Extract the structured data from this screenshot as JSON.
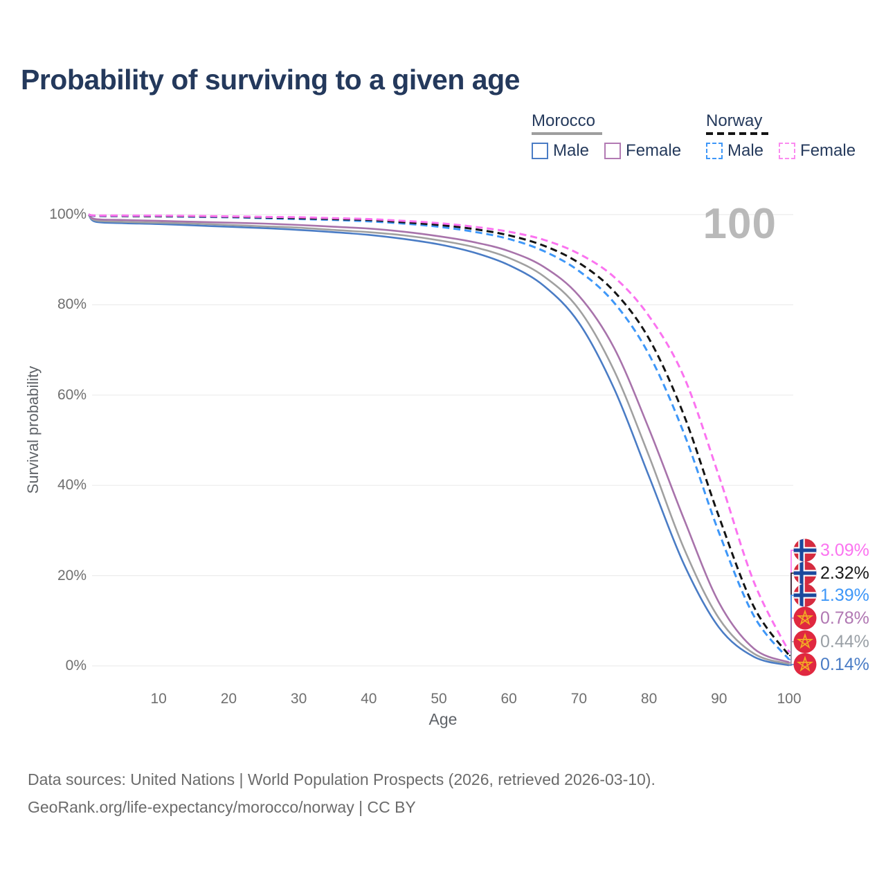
{
  "title": "Probability of surviving to a given age",
  "watermark": "100",
  "legend": {
    "groups": [
      {
        "label": "Morocco",
        "line_style": "solid",
        "line_color": "#9e9e9e",
        "items": [
          {
            "label": "Male",
            "color": "#4a7cc5",
            "dashed": false
          },
          {
            "label": "Female",
            "color": "#b27ab3",
            "dashed": false
          }
        ]
      },
      {
        "label": "Norway",
        "line_style": "dashed",
        "line_color": "#141414",
        "items": [
          {
            "label": "Male",
            "color": "#3e97f8",
            "dashed": true
          },
          {
            "label": "Female",
            "color": "#fb8bf0",
            "dashed": true
          }
        ]
      }
    ]
  },
  "axes": {
    "x_title": "Age",
    "y_title": "Survival probability",
    "x_tick_labels": [
      "10",
      "20",
      "30",
      "40",
      "50",
      "60",
      "70",
      "80",
      "90",
      "100"
    ],
    "x_tick_values": [
      10,
      20,
      30,
      40,
      50,
      60,
      70,
      80,
      90,
      100
    ],
    "y_tick_labels": [
      "100%",
      "80%",
      "60%",
      "40%",
      "20%",
      "0%"
    ],
    "y_tick_values": [
      100,
      80,
      60,
      40,
      20,
      0
    ]
  },
  "end_labels": [
    {
      "text": "3.09%",
      "value_pct": 3.09,
      "color": "#fb73f0",
      "flag": "norway",
      "series": "Norway Female"
    },
    {
      "text": "2.32%",
      "value_pct": 2.32,
      "color": "#1a1a1a",
      "flag": "norway",
      "series": "Norway"
    },
    {
      "text": "1.39%",
      "value_pct": 1.39,
      "color": "#3e97f8",
      "flag": "norway",
      "series": "Norway Male"
    },
    {
      "text": "0.78%",
      "value_pct": 0.78,
      "color": "#b077b2",
      "flag": "morocco",
      "series": "Morocco Female"
    },
    {
      "text": "0.44%",
      "value_pct": 0.44,
      "color": "#9aa0a6",
      "flag": "morocco",
      "series": "Morocco"
    },
    {
      "text": "0.14%",
      "value_pct": 0.14,
      "color": "#4a7cc5",
      "flag": "morocco",
      "series": "Morocco Male"
    }
  ],
  "footer": {
    "line1": "Data sources: United Nations | World Population Prospects (2026, retrieved 2026-03-10).",
    "line2": "GeoRank.org/life-expectancy/morocco/norway | CC BY"
  },
  "chart_data": {
    "type": "line",
    "title": "Probability of surviving to a given age",
    "xlabel": "Age",
    "ylabel": "Survival probability",
    "xlim": [
      0,
      100
    ],
    "ylim": [
      0,
      100
    ],
    "grid": "horizontal",
    "legend_position": "top-right",
    "hover_x_value": 100,
    "series": [
      {
        "name": "Morocco Male",
        "country": "Morocco",
        "sex": "male",
        "color": "#4a7cc5",
        "dashed": false,
        "end_value_pct": 0.14,
        "points_age_pct": [
          [
            0,
            100
          ],
          [
            1,
            98.4
          ],
          [
            5,
            98.1
          ],
          [
            10,
            97.9
          ],
          [
            15,
            97.6
          ],
          [
            20,
            97.3
          ],
          [
            25,
            97.0
          ],
          [
            30,
            96.6
          ],
          [
            35,
            96.1
          ],
          [
            40,
            95.5
          ],
          [
            45,
            94.6
          ],
          [
            50,
            93.4
          ],
          [
            55,
            91.6
          ],
          [
            60,
            88.8
          ],
          [
            65,
            84.2
          ],
          [
            70,
            76.0
          ],
          [
            75,
            61.5
          ],
          [
            80,
            42.0
          ],
          [
            85,
            22.5
          ],
          [
            90,
            8.5
          ],
          [
            95,
            2.0
          ],
          [
            100,
            0.14
          ]
        ]
      },
      {
        "name": "Morocco",
        "country": "Morocco",
        "sex": "total",
        "color": "#a0a0a0",
        "dashed": false,
        "end_value_pct": 0.44,
        "points_age_pct": [
          [
            0,
            100
          ],
          [
            1,
            98.7
          ],
          [
            5,
            98.4
          ],
          [
            10,
            98.2
          ],
          [
            15,
            98.0
          ],
          [
            20,
            97.7
          ],
          [
            25,
            97.4
          ],
          [
            30,
            97.1
          ],
          [
            35,
            96.6
          ],
          [
            40,
            96.1
          ],
          [
            45,
            95.4
          ],
          [
            50,
            94.3
          ],
          [
            55,
            92.8
          ],
          [
            60,
            90.4
          ],
          [
            65,
            86.3
          ],
          [
            70,
            79.0
          ],
          [
            75,
            65.5
          ],
          [
            80,
            46.5
          ],
          [
            85,
            26.0
          ],
          [
            90,
            10.5
          ],
          [
            95,
            2.7
          ],
          [
            100,
            0.44
          ]
        ]
      },
      {
        "name": "Morocco Female",
        "country": "Morocco",
        "sex": "female",
        "color": "#a873ab",
        "dashed": false,
        "end_value_pct": 0.78,
        "points_age_pct": [
          [
            0,
            100
          ],
          [
            1,
            99.0
          ],
          [
            5,
            98.8
          ],
          [
            10,
            98.6
          ],
          [
            15,
            98.4
          ],
          [
            20,
            98.2
          ],
          [
            25,
            98.0
          ],
          [
            30,
            97.7
          ],
          [
            35,
            97.3
          ],
          [
            40,
            96.9
          ],
          [
            45,
            96.2
          ],
          [
            50,
            95.2
          ],
          [
            55,
            93.9
          ],
          [
            60,
            91.9
          ],
          [
            65,
            88.4
          ],
          [
            70,
            82.0
          ],
          [
            75,
            70.5
          ],
          [
            80,
            52.5
          ],
          [
            85,
            32.5
          ],
          [
            90,
            14.0
          ],
          [
            95,
            3.8
          ],
          [
            100,
            0.78
          ]
        ]
      },
      {
        "name": "Norway Male",
        "country": "Norway",
        "sex": "male",
        "color": "#3e97f8",
        "dashed": true,
        "end_value_pct": 1.39,
        "points_age_pct": [
          [
            0,
            100
          ],
          [
            1,
            99.7
          ],
          [
            5,
            99.65
          ],
          [
            10,
            99.6
          ],
          [
            15,
            99.5
          ],
          [
            20,
            99.4
          ],
          [
            25,
            99.2
          ],
          [
            30,
            99.0
          ],
          [
            35,
            98.8
          ],
          [
            40,
            98.5
          ],
          [
            45,
            98.0
          ],
          [
            50,
            97.3
          ],
          [
            55,
            96.2
          ],
          [
            60,
            94.6
          ],
          [
            65,
            91.9
          ],
          [
            70,
            87.5
          ],
          [
            75,
            80.5
          ],
          [
            80,
            69.0
          ],
          [
            85,
            51.5
          ],
          [
            90,
            29.5
          ],
          [
            95,
            11.0
          ],
          [
            100,
            1.39
          ]
        ]
      },
      {
        "name": "Norway",
        "country": "Norway",
        "sex": "total",
        "color": "#141414",
        "dashed": true,
        "end_value_pct": 2.32,
        "points_age_pct": [
          [
            0,
            100
          ],
          [
            1,
            99.75
          ],
          [
            5,
            99.7
          ],
          [
            10,
            99.65
          ],
          [
            15,
            99.6
          ],
          [
            20,
            99.5
          ],
          [
            25,
            99.35
          ],
          [
            30,
            99.2
          ],
          [
            35,
            99.0
          ],
          [
            40,
            98.8
          ],
          [
            45,
            98.3
          ],
          [
            50,
            97.7
          ],
          [
            55,
            96.8
          ],
          [
            60,
            95.4
          ],
          [
            65,
            93.1
          ],
          [
            70,
            89.3
          ],
          [
            75,
            83.0
          ],
          [
            80,
            72.5
          ],
          [
            85,
            55.5
          ],
          [
            90,
            33.0
          ],
          [
            95,
            13.0
          ],
          [
            100,
            2.32
          ]
        ]
      },
      {
        "name": "Norway Female",
        "country": "Norway",
        "sex": "female",
        "color": "#fb73f0",
        "dashed": true,
        "end_value_pct": 3.09,
        "points_age_pct": [
          [
            0,
            100
          ],
          [
            1,
            99.8
          ],
          [
            5,
            99.78
          ],
          [
            10,
            99.75
          ],
          [
            15,
            99.7
          ],
          [
            20,
            99.6
          ],
          [
            25,
            99.5
          ],
          [
            30,
            99.4
          ],
          [
            35,
            99.2
          ],
          [
            40,
            99.0
          ],
          [
            45,
            98.6
          ],
          [
            50,
            98.1
          ],
          [
            55,
            97.3
          ],
          [
            60,
            96.2
          ],
          [
            65,
            94.4
          ],
          [
            70,
            91.3
          ],
          [
            75,
            86.2
          ],
          [
            80,
            77.5
          ],
          [
            85,
            64.0
          ],
          [
            90,
            42.0
          ],
          [
            95,
            18.5
          ],
          [
            100,
            3.09
          ]
        ]
      }
    ]
  }
}
